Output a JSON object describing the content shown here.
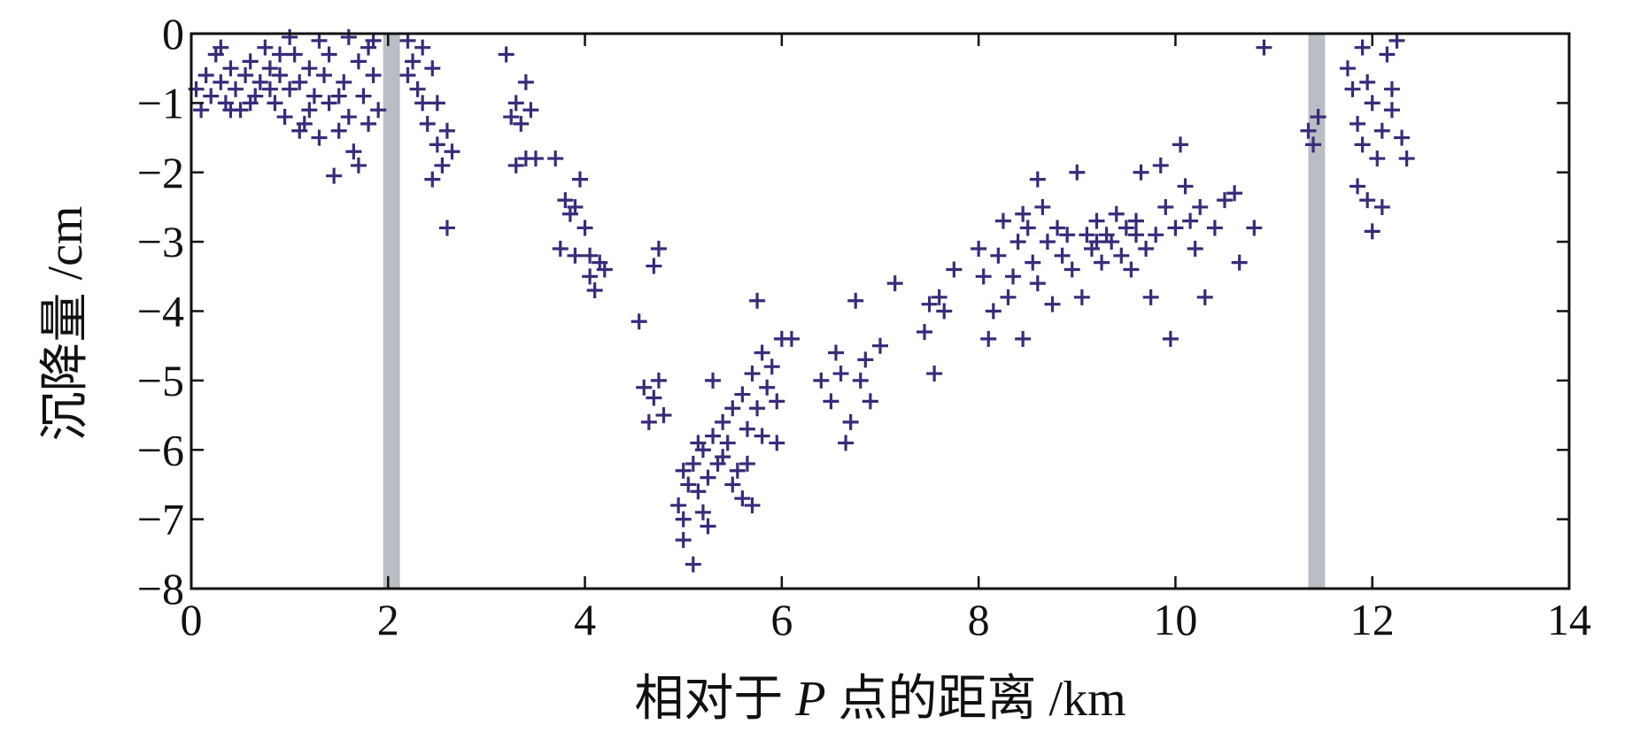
{
  "chart_data": {
    "type": "scatter",
    "title": "",
    "xlabel": "相对于 P 点的距离 /km",
    "xlabel_parts": {
      "prefix": "相对于 ",
      "italic": "P",
      "suffix": " 点的距离 /km"
    },
    "ylabel": "沉降量 /cm",
    "xlim": [
      0,
      14
    ],
    "ylim": [
      -8,
      0
    ],
    "x_ticks": [
      0,
      2,
      4,
      6,
      8,
      10,
      12,
      14
    ],
    "y_ticks": [
      0,
      -1,
      -2,
      -3,
      -4,
      -5,
      -6,
      -7,
      -8
    ],
    "x_tick_labels": [
      "0",
      "2",
      "4",
      "6",
      "8",
      "10",
      "12",
      "14"
    ],
    "y_tick_labels": [
      "0",
      "−1",
      "−2",
      "−3",
      "−4",
      "−5",
      "−6",
      "−7",
      "−8"
    ],
    "grid": false,
    "legend": "none",
    "marker": "plus",
    "marker_color": "#3b2a7a",
    "shaded_bands": [
      {
        "x": [
          1.95,
          2.12
        ],
        "color": "#b8bec4"
      },
      {
        "x": [
          11.35,
          11.52
        ],
        "color": "#b8bec4"
      }
    ],
    "points": [
      [
        0.05,
        -0.8
      ],
      [
        0.1,
        -1.1
      ],
      [
        0.15,
        -0.6
      ],
      [
        0.2,
        -0.9
      ],
      [
        0.25,
        -0.3
      ],
      [
        0.3,
        -0.7
      ],
      [
        0.35,
        -1.0
      ],
      [
        0.4,
        -0.5
      ],
      [
        0.45,
        -0.8
      ],
      [
        0.5,
        -1.1
      ],
      [
        0.55,
        -0.6
      ],
      [
        0.6,
        -0.4
      ],
      [
        0.65,
        -0.9
      ],
      [
        0.7,
        -0.7
      ],
      [
        0.75,
        -0.2
      ],
      [
        0.8,
        -0.5
      ],
      [
        0.85,
        -1.0
      ],
      [
        0.9,
        -0.6
      ],
      [
        0.95,
        -1.2
      ],
      [
        1.0,
        -0.8
      ],
      [
        1.05,
        -0.3
      ],
      [
        1.1,
        -0.7
      ],
      [
        1.15,
        -1.3
      ],
      [
        1.2,
        -0.5
      ],
      [
        1.25,
        -0.9
      ],
      [
        1.3,
        -1.5
      ],
      [
        1.35,
        -0.6
      ],
      [
        1.4,
        -1.0
      ],
      [
        1.45,
        -2.05
      ],
      [
        1.5,
        -1.4
      ],
      [
        1.55,
        -0.7
      ],
      [
        1.6,
        -1.2
      ],
      [
        1.65,
        -1.7
      ],
      [
        1.7,
        -0.4
      ],
      [
        1.75,
        -0.9
      ],
      [
        1.8,
        -0.2
      ],
      [
        1.85,
        -0.6
      ],
      [
        1.9,
        -1.1
      ],
      [
        0.3,
        -0.2
      ],
      [
        0.6,
        -1.0
      ],
      [
        0.9,
        -0.3
      ],
      [
        1.2,
        -1.1
      ],
      [
        1.5,
        -0.9
      ],
      [
        1.8,
        -1.3
      ],
      [
        0.8,
        -0.8
      ],
      [
        1.1,
        -1.4
      ],
      [
        1.4,
        -0.3
      ],
      [
        1.7,
        -1.9
      ],
      [
        0.4,
        -1.1
      ],
      [
        1.0,
        -0.05
      ],
      [
        1.3,
        -0.1
      ],
      [
        1.6,
        -0.05
      ],
      [
        1.85,
        -0.1
      ],
      [
        2.2,
        -0.1
      ],
      [
        2.25,
        -0.4
      ],
      [
        2.3,
        -0.8
      ],
      [
        2.35,
        -1.0
      ],
      [
        2.4,
        -1.3
      ],
      [
        2.45,
        -0.5
      ],
      [
        2.5,
        -1.6
      ],
      [
        2.55,
        -1.9
      ],
      [
        2.6,
        -1.4
      ],
      [
        2.65,
        -1.7
      ],
      [
        2.45,
        -2.1
      ],
      [
        2.6,
        -2.8
      ],
      [
        2.2,
        -0.6
      ],
      [
        2.35,
        -0.2
      ],
      [
        2.5,
        -1.0
      ],
      [
        3.2,
        -0.3
      ],
      [
        3.25,
        -1.2
      ],
      [
        3.3,
        -1.0
      ],
      [
        3.35,
        -1.3
      ],
      [
        3.4,
        -0.7
      ],
      [
        3.45,
        -1.1
      ],
      [
        3.3,
        -1.9
      ],
      [
        3.4,
        -1.8
      ],
      [
        3.5,
        -1.8
      ],
      [
        3.7,
        -1.8
      ],
      [
        3.75,
        -3.1
      ],
      [
        3.8,
        -2.4
      ],
      [
        3.85,
        -2.6
      ],
      [
        3.9,
        -3.2
      ],
      [
        3.95,
        -2.1
      ],
      [
        4.0,
        -2.8
      ],
      [
        4.05,
        -3.5
      ],
      [
        4.1,
        -3.7
      ],
      [
        4.15,
        -3.3
      ],
      [
        4.2,
        -3.4
      ],
      [
        3.9,
        -2.5
      ],
      [
        4.05,
        -3.2
      ],
      [
        4.75,
        -3.1
      ],
      [
        4.7,
        -3.35
      ],
      [
        4.55,
        -4.15
      ],
      [
        4.6,
        -5.1
      ],
      [
        4.65,
        -5.6
      ],
      [
        4.7,
        -5.25
      ],
      [
        4.75,
        -5.0
      ],
      [
        4.8,
        -5.5
      ],
      [
        4.95,
        -6.8
      ],
      [
        5.0,
        -7.3
      ],
      [
        5.0,
        -7.0
      ],
      [
        5.05,
        -6.5
      ],
      [
        5.1,
        -7.65
      ],
      [
        5.1,
        -6.2
      ],
      [
        5.15,
        -6.6
      ],
      [
        5.2,
        -6.0
      ],
      [
        5.25,
        -6.4
      ],
      [
        5.3,
        -5.8
      ],
      [
        5.35,
        -6.2
      ],
      [
        5.4,
        -5.6
      ],
      [
        5.45,
        -5.9
      ],
      [
        5.5,
        -5.4
      ],
      [
        5.55,
        -6.3
      ],
      [
        5.6,
        -5.2
      ],
      [
        5.65,
        -5.7
      ],
      [
        5.7,
        -4.9
      ],
      [
        5.75,
        -5.4
      ],
      [
        5.8,
        -4.6
      ],
      [
        5.85,
        -5.1
      ],
      [
        5.9,
        -4.8
      ],
      [
        5.95,
        -5.3
      ],
      [
        6.0,
        -4.4
      ],
      [
        5.6,
        -6.7
      ],
      [
        5.7,
        -6.8
      ],
      [
        5.2,
        -6.9
      ],
      [
        5.3,
        -5.0
      ],
      [
        5.75,
        -3.85
      ],
      [
        6.1,
        -4.4
      ],
      [
        5.4,
        -6.1
      ],
      [
        5.5,
        -6.5
      ],
      [
        5.65,
        -6.2
      ],
      [
        5.8,
        -5.8
      ],
      [
        5.95,
        -5.9
      ],
      [
        5.0,
        -6.3
      ],
      [
        5.15,
        -5.9
      ],
      [
        5.25,
        -7.1
      ],
      [
        6.4,
        -5.0
      ],
      [
        6.5,
        -5.3
      ],
      [
        6.55,
        -4.6
      ],
      [
        6.6,
        -4.9
      ],
      [
        6.65,
        -5.9
      ],
      [
        6.7,
        -5.6
      ],
      [
        6.75,
        -3.85
      ],
      [
        6.8,
        -5.0
      ],
      [
        6.85,
        -4.7
      ],
      [
        6.9,
        -5.3
      ],
      [
        7.0,
        -4.5
      ],
      [
        7.15,
        -3.6
      ],
      [
        7.45,
        -4.3
      ],
      [
        7.5,
        -3.9
      ],
      [
        7.55,
        -4.9
      ],
      [
        7.6,
        -3.8
      ],
      [
        7.65,
        -4.0
      ],
      [
        7.75,
        -3.4
      ],
      [
        8.0,
        -3.1
      ],
      [
        8.05,
        -3.5
      ],
      [
        8.1,
        -4.4
      ],
      [
        8.15,
        -4.0
      ],
      [
        8.2,
        -3.2
      ],
      [
        8.25,
        -2.7
      ],
      [
        8.3,
        -3.8
      ],
      [
        8.35,
        -3.5
      ],
      [
        8.4,
        -3.0
      ],
      [
        8.45,
        -4.4
      ],
      [
        8.5,
        -2.8
      ],
      [
        8.55,
        -3.3
      ],
      [
        8.6,
        -3.6
      ],
      [
        8.65,
        -2.5
      ],
      [
        8.7,
        -3.0
      ],
      [
        8.75,
        -3.9
      ],
      [
        8.8,
        -2.8
      ],
      [
        8.85,
        -3.2
      ],
      [
        8.9,
        -2.9
      ],
      [
        8.95,
        -3.4
      ],
      [
        9.0,
        -2.0
      ],
      [
        9.05,
        -3.8
      ],
      [
        9.1,
        -2.9
      ],
      [
        9.15,
        -3.1
      ],
      [
        9.2,
        -2.7
      ],
      [
        9.25,
        -3.3
      ],
      [
        9.3,
        -2.9
      ],
      [
        9.35,
        -3.0
      ],
      [
        9.4,
        -2.6
      ],
      [
        9.45,
        -3.2
      ],
      [
        9.5,
        -2.8
      ],
      [
        9.55,
        -3.4
      ],
      [
        9.6,
        -2.9
      ],
      [
        9.65,
        -2.0
      ],
      [
        9.7,
        -3.1
      ],
      [
        9.75,
        -3.8
      ],
      [
        9.8,
        -2.9
      ],
      [
        9.85,
        -1.9
      ],
      [
        9.9,
        -2.5
      ],
      [
        9.95,
        -4.4
      ],
      [
        10.0,
        -2.8
      ],
      [
        10.05,
        -1.6
      ],
      [
        10.1,
        -2.2
      ],
      [
        10.15,
        -2.7
      ],
      [
        10.2,
        -3.1
      ],
      [
        10.25,
        -2.5
      ],
      [
        10.3,
        -3.8
      ],
      [
        10.4,
        -2.8
      ],
      [
        10.5,
        -2.4
      ],
      [
        10.6,
        -2.3
      ],
      [
        10.65,
        -3.3
      ],
      [
        10.8,
        -2.8
      ],
      [
        8.6,
        -2.1
      ],
      [
        8.45,
        -2.6
      ],
      [
        9.2,
        -3.0
      ],
      [
        9.6,
        -2.7
      ],
      [
        10.9,
        -0.2
      ],
      [
        11.35,
        -1.4
      ],
      [
        11.4,
        -1.6
      ],
      [
        11.45,
        -1.2
      ],
      [
        11.75,
        -0.5
      ],
      [
        11.8,
        -0.8
      ],
      [
        11.85,
        -1.3
      ],
      [
        11.9,
        -1.6
      ],
      [
        11.85,
        -2.2
      ],
      [
        11.95,
        -2.4
      ],
      [
        12.0,
        -2.85
      ],
      [
        12.0,
        -1.0
      ],
      [
        12.05,
        -1.8
      ],
      [
        12.1,
        -1.4
      ],
      [
        12.15,
        -0.3
      ],
      [
        12.2,
        -1.1
      ],
      [
        12.25,
        -0.1
      ],
      [
        12.3,
        -1.5
      ],
      [
        12.35,
        -1.8
      ],
      [
        11.9,
        -0.2
      ],
      [
        12.1,
        -2.5
      ],
      [
        11.95,
        -0.7
      ],
      [
        12.2,
        -0.8
      ]
    ]
  }
}
